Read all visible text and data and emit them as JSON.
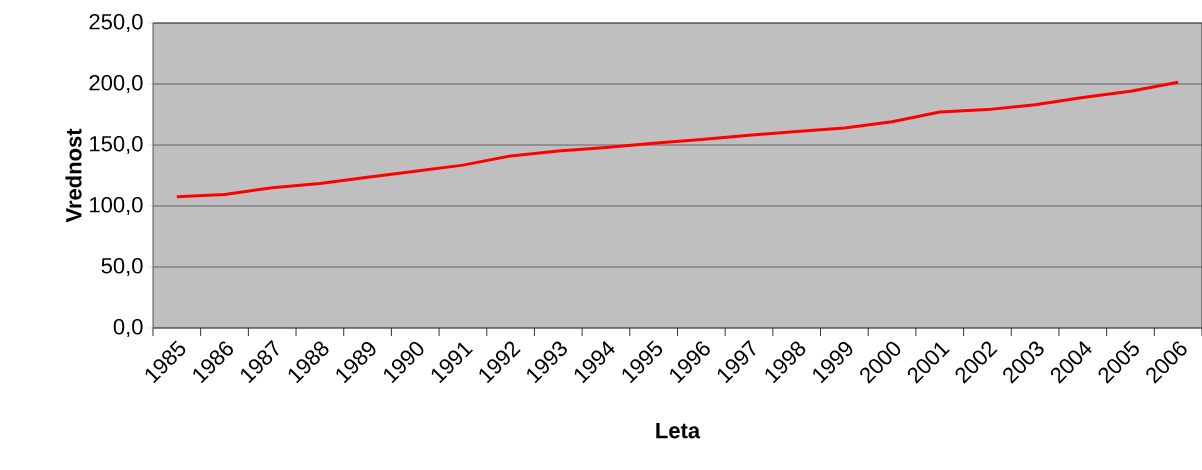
{
  "chart_data": {
    "type": "line",
    "xlabel": "Leta",
    "ylabel": "Vrednost",
    "categories": [
      "1985",
      "1986",
      "1987",
      "1988",
      "1989",
      "1990",
      "1991",
      "1992",
      "1993",
      "1994",
      "1995",
      "1996",
      "1997",
      "1998",
      "1999",
      "2000",
      "2001",
      "2002",
      "2003",
      "2004",
      "2005",
      "2006"
    ],
    "series": [
      {
        "color": "#ff0000",
        "values": [
          107.5,
          109.5,
          115,
          118.5,
          123.5,
          128.5,
          133.5,
          141,
          145,
          148,
          151.5,
          154.5,
          158,
          161,
          164,
          169,
          177,
          179,
          183,
          189,
          194,
          201.5
        ]
      }
    ],
    "ylim": [
      0,
      250
    ],
    "yticks": [
      {
        "value": 0,
        "label": "0,0"
      },
      {
        "value": 50,
        "label": "50,0"
      },
      {
        "value": 100,
        "label": "100,0"
      },
      {
        "value": 150,
        "label": "150,0"
      },
      {
        "value": 200,
        "label": "200,0"
      },
      {
        "value": 250,
        "label": "250,0"
      }
    ],
    "grid": "y",
    "legend": false,
    "marker": "none",
    "line_style": "solid"
  }
}
